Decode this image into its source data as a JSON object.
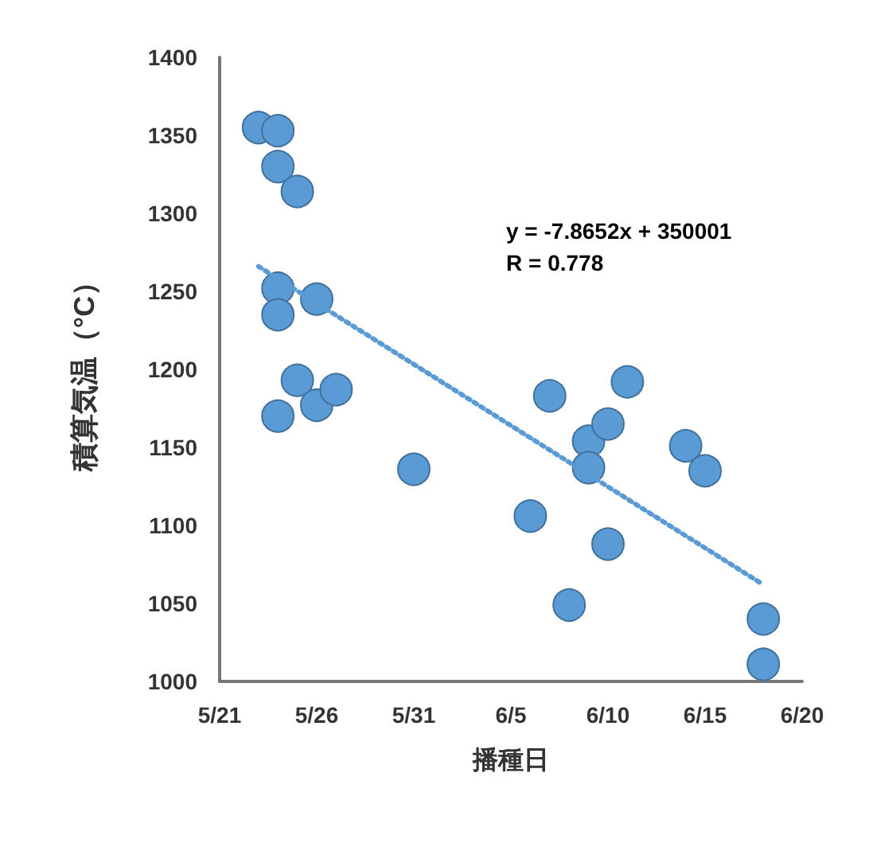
{
  "chart_data": {
    "type": "scatter",
    "xlabel": "播種日",
    "ylabel": "積算気温（°C）",
    "xlim": [
      "--05-21",
      "--06-20"
    ],
    "xticks": [
      {
        "value": "--05-21",
        "label": "5/21"
      },
      {
        "value": "--05-26",
        "label": "5/26"
      },
      {
        "value": "--05-31",
        "label": "5/31"
      },
      {
        "value": "--06-05",
        "label": "6/5"
      },
      {
        "value": "--06-10",
        "label": "6/10"
      },
      {
        "value": "--06-15",
        "label": "6/15"
      },
      {
        "value": "--06-20",
        "label": "6/20"
      }
    ],
    "ylim": [
      1000,
      1400
    ],
    "yticks": [
      1000,
      1050,
      1100,
      1150,
      1200,
      1250,
      1300,
      1350,
      1400
    ],
    "grid": false,
    "marker": "circle",
    "series": [
      {
        "color": "#5b9bd5",
        "x": [
          "--05-23",
          "--05-24",
          "--05-24",
          "--05-25",
          "--05-24",
          "--05-24",
          "--05-26",
          "--05-25",
          "--05-24",
          "--05-26",
          "--05-27",
          "--05-31",
          "--06-06",
          "--06-07",
          "--06-08",
          "--06-09",
          "--06-09",
          "--06-10",
          "--06-10",
          "--06-11",
          "--06-14",
          "--06-15",
          "--06-18",
          "--06-18"
        ],
        "values": [
          1355,
          1353,
          1330,
          1314,
          1252,
          1235,
          1245,
          1193,
          1170,
          1177,
          1187,
          1136,
          1106,
          1183,
          1049,
          1154,
          1137,
          1165,
          1088,
          1192,
          1151,
          1135,
          1040,
          1011
        ]
      },
      {
        "type": "line",
        "color": "#5b9bd5",
        "line_style": "dotted",
        "marker": "none",
        "x": [
          "--05-23",
          "--06-18"
        ],
        "values": [
          1266,
          1062
        ]
      }
    ],
    "annotations": [
      "y = -7.8652x + 350001",
      "R = 0.778"
    ]
  }
}
